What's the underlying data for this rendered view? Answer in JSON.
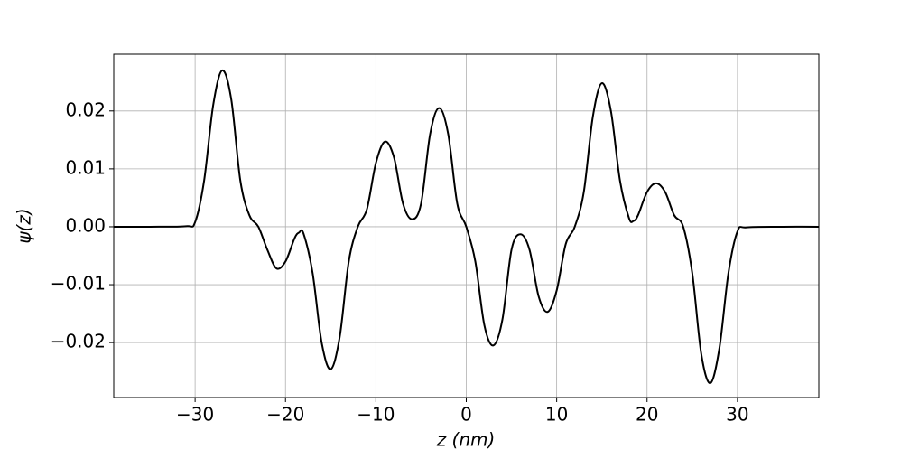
{
  "chart_data": {
    "type": "line",
    "xlabel": "z (nm)",
    "ylabel": "ψ(z)",
    "x": [
      -39,
      -35,
      -31,
      -30,
      -29,
      -28,
      -27,
      -26,
      -25,
      -24,
      -23,
      -22,
      -21,
      -20,
      -19,
      -18.5,
      -18,
      -17,
      -16,
      -15,
      -14,
      -13,
      -12,
      -11,
      -10,
      -9,
      -8,
      -7,
      -6,
      -5,
      -4,
      -3,
      -2,
      -1,
      0,
      1,
      2,
      3,
      4,
      5,
      6,
      7,
      8,
      9,
      10,
      11,
      12,
      13,
      14,
      15,
      16,
      17,
      18,
      18.5,
      19,
      20,
      21,
      22,
      23,
      24,
      25,
      26,
      27,
      28,
      29,
      30,
      31,
      35,
      39
    ],
    "series": [
      {
        "name": "psi",
        "color": "#000000",
        "values": [
          0,
          0,
          0.0001,
          0.0008,
          0.008,
          0.021,
          0.027,
          0.022,
          0.008,
          0.002,
          0.0,
          -0.004,
          -0.0072,
          -0.006,
          -0.002,
          -0.001,
          -0.0012,
          -0.008,
          -0.02,
          -0.0246,
          -0.019,
          -0.006,
          0.0,
          0.003,
          0.011,
          0.0147,
          0.012,
          0.004,
          0.0013,
          0.004,
          0.016,
          0.0205,
          0.016,
          0.004,
          0.0,
          -0.006,
          -0.017,
          -0.0205,
          -0.016,
          -0.004,
          -0.0013,
          -0.004,
          -0.012,
          -0.0147,
          -0.011,
          -0.003,
          0.0,
          0.006,
          0.019,
          0.0248,
          0.02,
          0.008,
          0.0015,
          0.001,
          0.002,
          0.006,
          0.0075,
          0.006,
          0.002,
          0.0,
          -0.008,
          -0.022,
          -0.027,
          -0.021,
          -0.008,
          -0.0008,
          -0.0001,
          0,
          0
        ]
      }
    ],
    "xlim": [
      -39,
      39
    ],
    "ylim": [
      -0.0295,
      0.0298
    ],
    "xticks": [
      {
        "value": -30,
        "label": "−30"
      },
      {
        "value": -20,
        "label": "−20"
      },
      {
        "value": -10,
        "label": "−10"
      },
      0,
      10,
      20,
      30
    ],
    "yticks": [
      {
        "value": -0.02,
        "label": "−0.02"
      },
      {
        "value": -0.01,
        "label": "−0.01"
      },
      {
        "value": 0,
        "label": "0.00"
      },
      0.01,
      0.02
    ],
    "grid": true
  }
}
